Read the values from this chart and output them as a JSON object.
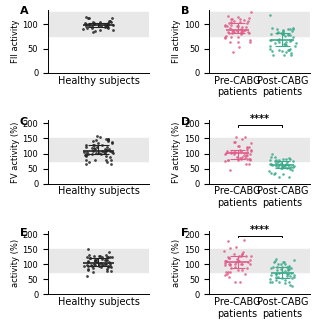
{
  "panels": [
    {
      "label": "A",
      "ylabel": "FII activity",
      "ylim": [
        0,
        130
      ],
      "yticks": [
        0,
        50,
        100
      ],
      "shade": [
        75,
        125
      ],
      "groups": [
        {
          "name": "Healthy subjects",
          "color": "#222222",
          "n": 35,
          "mean": 100,
          "spread": 8,
          "multiline": false
        }
      ],
      "sig": null
    },
    {
      "label": "B",
      "ylabel": "FII activity",
      "ylim": [
        0,
        130
      ],
      "yticks": [
        0,
        50,
        100
      ],
      "shade": [
        75,
        125
      ],
      "groups": [
        {
          "name": "Pre-CABG\npatients",
          "color": "#e05c8a",
          "n": 50,
          "mean": 90,
          "spread": 18,
          "multiline": true
        },
        {
          "name": "Post-CABG\npatients",
          "color": "#3aaa8a",
          "n": 50,
          "mean": 65,
          "spread": 20,
          "multiline": true
        }
      ],
      "sig": null
    },
    {
      "label": "C",
      "ylabel": "FV activity (%)",
      "ylim": [
        0,
        210
      ],
      "yticks": [
        0,
        50,
        100,
        150,
        200
      ],
      "shade": [
        75,
        150
      ],
      "groups": [
        {
          "name": "Healthy subjects",
          "color": "#222222",
          "n": 55,
          "mean": 108,
          "spread": 22,
          "multiline": false
        }
      ],
      "sig": null
    },
    {
      "label": "D",
      "ylabel": "FV activity (%)",
      "ylim": [
        0,
        210
      ],
      "yticks": [
        0,
        50,
        100,
        150,
        200
      ],
      "shade": [
        75,
        150
      ],
      "groups": [
        {
          "name": "Pre-CABG\npatients",
          "color": "#e05c8a",
          "n": 45,
          "mean": 100,
          "spread": 25,
          "multiline": true
        },
        {
          "name": "Post-CABG\npatients",
          "color": "#3aaa8a",
          "n": 45,
          "mean": 62,
          "spread": 18,
          "multiline": true
        }
      ],
      "sig": "****"
    },
    {
      "label": "E",
      "ylabel": "activity (%)",
      "ylim": [
        0,
        210
      ],
      "yticks": [
        0,
        50,
        100,
        150,
        200
      ],
      "shade": [
        75,
        150
      ],
      "groups": [
        {
          "name": "Healthy subjects",
          "color": "#222222",
          "n": 55,
          "mean": 112,
          "spread": 20,
          "multiline": false
        }
      ],
      "sig": null
    },
    {
      "label": "F",
      "ylabel": "activity (%)",
      "ylim": [
        0,
        210
      ],
      "yticks": [
        0,
        50,
        100,
        150,
        200
      ],
      "shade": [
        75,
        150
      ],
      "groups": [
        {
          "name": "Pre-CABG\npatients",
          "color": "#e05c8a",
          "n": 48,
          "mean": 105,
          "spread": 28,
          "multiline": true
        },
        {
          "name": "Post-CABG\npatients",
          "color": "#3aaa8a",
          "n": 48,
          "mean": 75,
          "spread": 20,
          "multiline": true
        }
      ],
      "sig": "****"
    }
  ],
  "background_color": "#ffffff",
  "label_fontsize": 7,
  "tick_fontsize": 6,
  "axis_label_fontsize": 6
}
